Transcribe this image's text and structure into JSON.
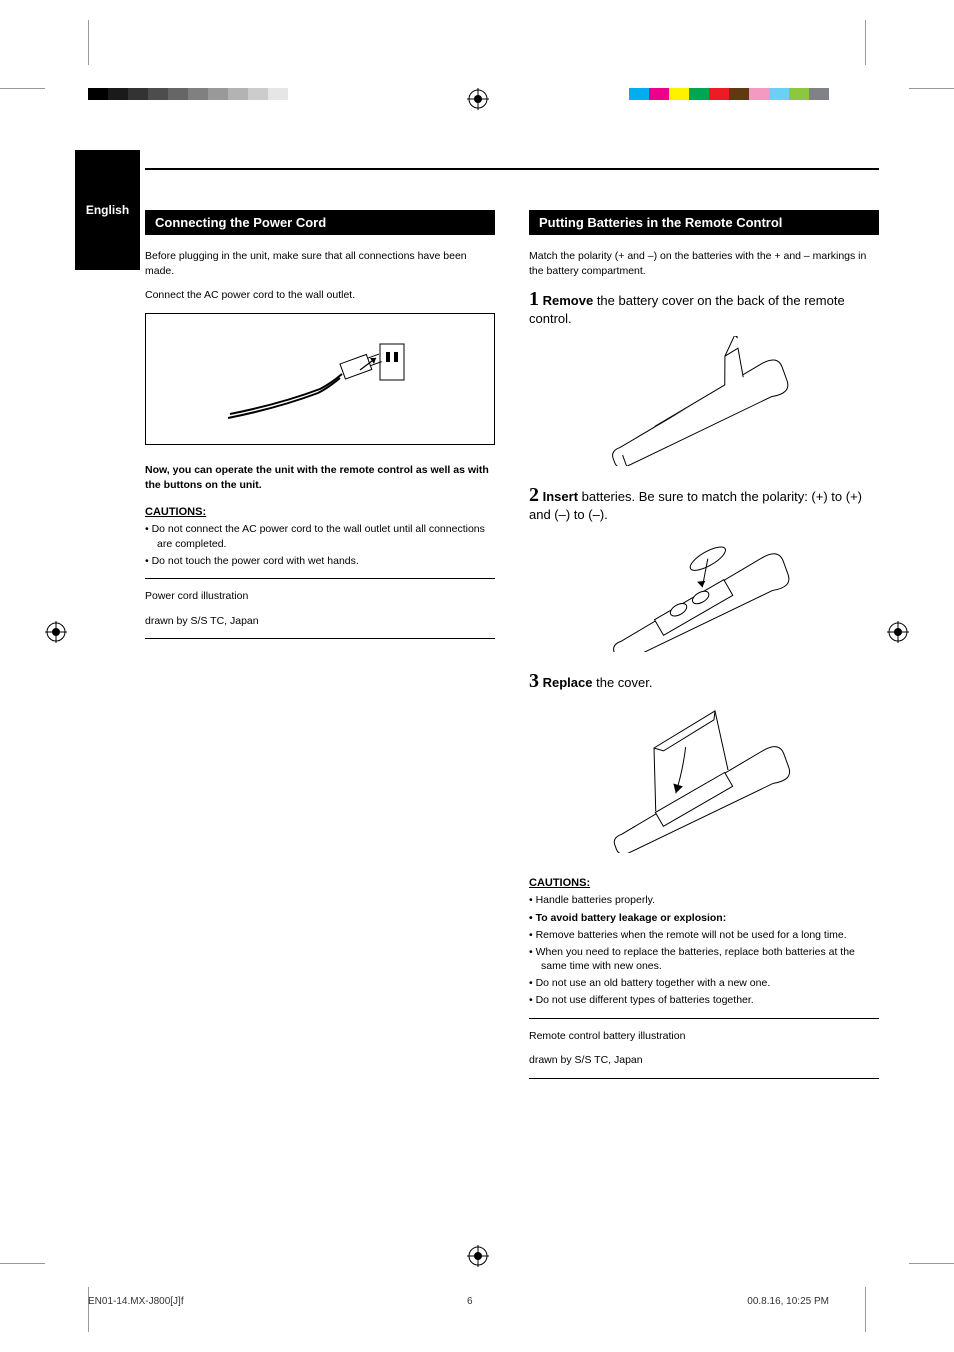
{
  "page_label": "English",
  "section_left": {
    "header": "Connecting the Power Cord",
    "para1": "Before plugging in the unit, make sure that all connections have been made.",
    "para2": "Connect the AC power cord to the wall outlet.",
    "bold1": "Now, you can operate the unit with the remote control as well as with the buttons on the unit.",
    "caution_label": "CAUTIONS:",
    "caution_items": [
      "• Do not connect the AC power cord to the wall outlet until all connections are completed.",
      "• Do not touch the power cord with wet hands."
    ],
    "credit1": "Power cord illustration",
    "credit2": "drawn by S/S TC, Japan"
  },
  "section_right": {
    "header": "Putting Batteries in the Remote Control",
    "intro": "Match the polarity (+ and –) on the batteries with the + and – markings in the battery compartment.",
    "steps": [
      {
        "num": "1",
        "verb": "Remove",
        "rest": " the battery cover on the back of the remote control."
      },
      {
        "num": "2",
        "verb": "Insert",
        "rest": " batteries. Be sure to match the polarity: (+) to (+) and (–) to (–)."
      },
      {
        "num": "3",
        "verb": "Replace",
        "rest": " the cover."
      }
    ],
    "caution_label": "CAUTIONS:",
    "caution_items": [
      "• Handle batteries properly.",
      "• To avoid battery leakage or explosion:",
      "• Remove batteries when the remote will not be used for a long time.",
      "• When you need to replace the batteries, replace both batteries at the same time with new ones.",
      "• Do not use an old battery together with a new one.",
      "• Do not use different types of batteries together."
    ],
    "credit1": "Remote control battery illustration",
    "credit2": "drawn by S/S TC, Japan"
  },
  "color_bars_left": [
    "#000000",
    "#1a1a1a",
    "#333333",
    "#4d4d4d",
    "#666666",
    "#808080",
    "#999999",
    "#b3b3b3",
    "#cccccc",
    "#e6e6e6"
  ],
  "color_bars_right": [
    "#00aeef",
    "#ec008c",
    "#fff200",
    "#00a651",
    "#ed1c24",
    "#603913",
    "#f49ac1",
    "#6dcff6",
    "#8dc63f",
    "#808285"
  ],
  "footer": {
    "file": "EN01-14.MX-J800[J]f",
    "page": "6",
    "date": "00.8.16, 10:25 PM"
  }
}
